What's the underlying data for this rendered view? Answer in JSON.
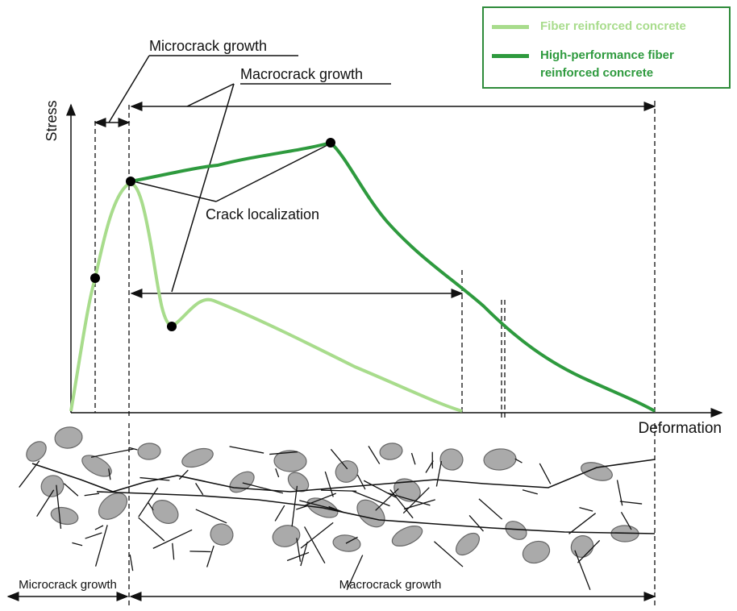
{
  "legend": {
    "items": [
      {
        "label": "Fiber reinforced concrete",
        "color": "#a8dc8c"
      },
      {
        "label": "High-performance fiber reinforced concrete",
        "color": "#2e9a3e"
      }
    ]
  },
  "axes": {
    "y_label": "Stress",
    "x_label": "Deformation"
  },
  "annotations": {
    "microcrack": "Microcrack growth",
    "macrocrack": "Macrocrack growth",
    "localization": "Crack localization"
  },
  "bottom": {
    "left": "Microcrack growth",
    "right": "Macrocrack growth"
  }
}
